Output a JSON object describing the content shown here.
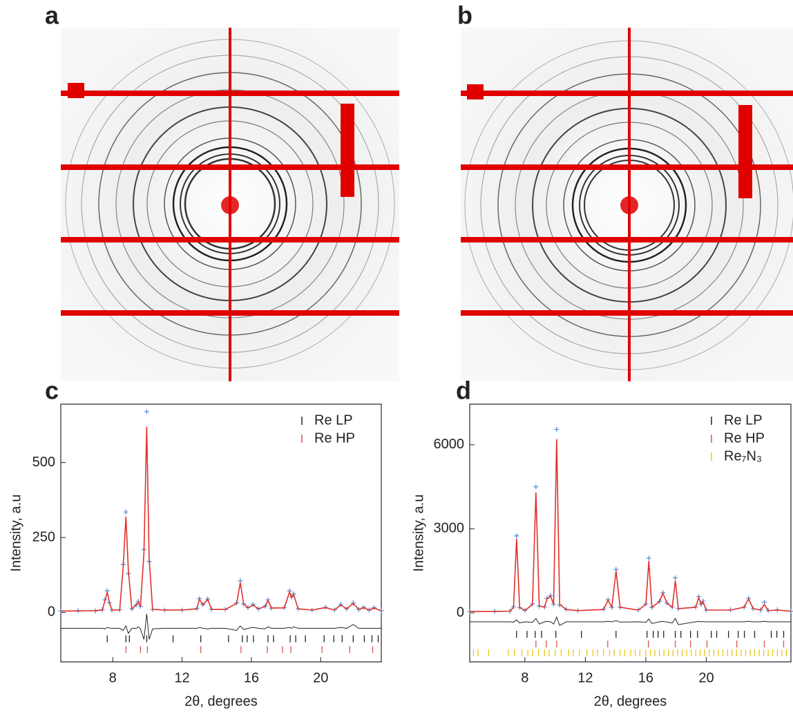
{
  "panel_labels": [
    "a",
    "b",
    "c",
    "d"
  ],
  "chart_data": [
    {
      "type": "line",
      "xlabel": "2θ, degrees",
      "ylabel": "Intensity, a.u",
      "xlim": [
        5,
        23.5
      ],
      "ylim": [
        -165,
        695
      ],
      "xticks": [
        8,
        12,
        16,
        20
      ],
      "yticks": [
        0,
        250,
        500
      ],
      "legend": "upper right",
      "x": [
        5.0,
        6.0,
        7.0,
        7.4,
        7.55,
        7.68,
        7.8,
        7.95,
        8.4,
        8.6,
        8.76,
        8.9,
        9.1,
        9.35,
        9.48,
        9.6,
        9.8,
        9.96,
        10.1,
        10.3,
        11.0,
        12.0,
        12.85,
        13.0,
        13.2,
        13.48,
        13.7,
        14.5,
        15.15,
        15.36,
        15.55,
        15.8,
        16.1,
        16.4,
        16.8,
        16.96,
        17.15,
        17.9,
        18.2,
        18.32,
        18.44,
        18.7,
        19.5,
        20.28,
        20.8,
        21.16,
        21.5,
        21.88,
        22.2,
        22.48,
        22.8,
        23.08,
        23.5
      ],
      "series": [
        {
          "color": "#5b8fd6",
          "marker": "+",
          "values": [
            5,
            6,
            5,
            9,
            42,
            72,
            33,
            8,
            9,
            160,
            335,
            130,
            12,
            25,
            37,
            20,
            210,
            670,
            170,
            10,
            8,
            8,
            13,
            46,
            26,
            45,
            11,
            10,
            32,
            105,
            28,
            16,
            27,
            12,
            21,
            42,
            14,
            16,
            72,
            52,
            62,
            12,
            8,
            17,
            9,
            27,
            12,
            32,
            10,
            17,
            8,
            16,
            6
          ]
        },
        {
          "color": "#e0302a",
          "values": [
            5,
            5,
            6,
            8,
            40,
            68,
            35,
            8,
            8,
            150,
            320,
            140,
            12,
            25,
            35,
            20,
            200,
            620,
            180,
            10,
            8,
            8,
            12,
            44,
            25,
            44,
            10,
            10,
            30,
            100,
            30,
            15,
            25,
            12,
            20,
            40,
            15,
            15,
            68,
            50,
            60,
            12,
            8,
            16,
            8,
            25,
            12,
            30,
            10,
            16,
            8,
            15,
            5
          ]
        },
        {
          "color": "#222222",
          "values": [
            -53,
            -53,
            -53,
            -53,
            -55,
            -50,
            -52,
            -53,
            -53,
            -60,
            -45,
            -70,
            -53,
            -53,
            -48,
            -55,
            -90,
            -5,
            -90,
            -55,
            -53,
            -53,
            -53,
            -50,
            -53,
            -55,
            -53,
            -53,
            -60,
            -45,
            -57,
            -53,
            -50,
            -53,
            -55,
            -48,
            -53,
            -53,
            -50,
            -53,
            -48,
            -53,
            -53,
            -53,
            -53,
            -50,
            -53,
            -40,
            -53,
            -53,
            -53,
            -53,
            -53
          ]
        }
      ],
      "reflections": [
        {
          "name": "Re LP",
          "color": "#222222",
          "x": [
            7.68,
            8.76,
            8.96,
            9.96,
            11.48,
            13.08,
            14.68,
            15.48,
            15.76,
            16.12,
            16.96,
            17.28,
            18.24,
            18.56,
            19.12,
            20.2,
            20.76,
            21.24,
            21.88,
            22.52,
            22.96,
            23.32
          ],
          "values": [
            -88,
            -88,
            -88,
            -88,
            -88,
            -88,
            -88,
            -88,
            -88,
            -88,
            -88,
            -88,
            -88,
            -88,
            -88,
            -88,
            -88,
            -88,
            -88,
            -88,
            -88,
            -88
          ]
        },
        {
          "name": "Re HP",
          "color": "#d9534f",
          "x": [
            8.76,
            9.6,
            10.0,
            13.08,
            15.4,
            16.92,
            17.8,
            18.28,
            20.08,
            21.68,
            23.0
          ],
          "values": [
            -124,
            -124,
            -124,
            -124,
            -124,
            -124,
            -124,
            -124,
            -124,
            -124,
            -124
          ]
        }
      ]
    },
    {
      "type": "line",
      "xlabel": "2θ, degrees",
      "ylabel": "Intensity, a.u",
      "xlim": [
        4.35,
        25.6
      ],
      "ylim": [
        -1750,
        7450
      ],
      "xticks": [
        8,
        12,
        16,
        20
      ],
      "yticks": [
        0,
        3000,
        6000
      ],
      "legend": "upper right",
      "x": [
        4.35,
        6.0,
        7.0,
        7.25,
        7.45,
        7.65,
        8.0,
        8.5,
        8.73,
        8.95,
        9.3,
        9.46,
        9.7,
        9.9,
        10.1,
        10.3,
        10.74,
        11.5,
        13.2,
        13.5,
        13.75,
        14.03,
        14.3,
        15.5,
        16.0,
        16.2,
        16.4,
        16.9,
        17.13,
        17.4,
        17.75,
        17.95,
        18.15,
        19.3,
        19.5,
        19.65,
        19.78,
        20.0,
        21.6,
        22.5,
        22.8,
        23.1,
        23.6,
        23.84,
        24.1,
        24.7,
        25.6
      ],
      "series": [
        {
          "color": "#5b8fd6",
          "marker": "+",
          "values": [
            50,
            60,
            60,
            220,
            2750,
            190,
            90,
            320,
            4500,
            240,
            210,
            520,
            620,
            310,
            6550,
            280,
            120,
            80,
            130,
            470,
            200,
            1550,
            200,
            110,
            320,
            1950,
            200,
            410,
            720,
            350,
            210,
            1250,
            150,
            210,
            580,
            310,
            420,
            100,
            110,
            200,
            520,
            150,
            100,
            380,
            80,
            110,
            60
          ]
        },
        {
          "color": "#e0302a",
          "values": [
            50,
            50,
            60,
            200,
            2650,
            200,
            80,
            300,
            4300,
            250,
            200,
            500,
            600,
            300,
            6200,
            300,
            120,
            80,
            120,
            450,
            200,
            1500,
            200,
            100,
            300,
            1850,
            200,
            400,
            700,
            350,
            200,
            1150,
            150,
            200,
            550,
            300,
            400,
            100,
            100,
            200,
            500,
            150,
            100,
            300,
            80,
            100,
            60
          ]
        },
        {
          "color": "#222222",
          "values": [
            -320,
            -320,
            -320,
            -330,
            -250,
            -360,
            -320,
            -340,
            -200,
            -400,
            -320,
            -300,
            -320,
            -400,
            -150,
            -450,
            -320,
            -320,
            -320,
            -300,
            -320,
            -280,
            -330,
            -320,
            -340,
            -220,
            -380,
            -320,
            -300,
            -330,
            -360,
            -200,
            -420,
            -320,
            -300,
            -320,
            -310,
            -320,
            -320,
            -320,
            -300,
            -320,
            -320,
            -300,
            -320,
            -320,
            -320
          ]
        }
      ],
      "reflections": [
        {
          "name": "Re LP",
          "color": "#222222",
          "x": [
            7.45,
            8.14,
            8.68,
            9.1,
            10.05,
            11.74,
            14.03,
            16.08,
            16.49,
            16.81,
            17.18,
            17.95,
            18.32,
            18.96,
            19.42,
            20.33,
            20.69,
            21.47,
            22.11,
            22.52,
            23.2,
            24.3,
            24.67,
            25.12
          ],
          "values": [
            -765,
            -765,
            -765,
            -765,
            -765,
            -765,
            -765,
            -765,
            -765,
            -765,
            -765,
            -765,
            -765,
            -765,
            -765,
            -765,
            -765,
            -765,
            -765,
            -765,
            -765,
            -765,
            -765,
            -765
          ]
        },
        {
          "name": "Re HP",
          "color": "#d9534f",
          "x": [
            8.73,
            9.42,
            10.1,
            13.48,
            16.17,
            17.95,
            18.96,
            20.05,
            22.02,
            23.84,
            25.12
          ],
          "values": [
            -1110,
            -1110,
            -1110,
            -1110,
            -1110,
            -1110,
            -1110,
            -1110,
            -1110,
            -1110,
            -1110
          ]
        },
        {
          "name": "Re₇N₃",
          "color": "#f0c419",
          "x": [
            4.6,
            4.9,
            5.6,
            6.9,
            7.3,
            7.8,
            8.2,
            8.5,
            8.9,
            9.3,
            9.6,
            10.0,
            10.4,
            10.9,
            11.2,
            11.6,
            12.1,
            12.5,
            12.8,
            13.2,
            13.6,
            13.9,
            14.3,
            14.6,
            15.0,
            15.3,
            15.6,
            16.0,
            16.3,
            16.6,
            16.9,
            17.2,
            17.5,
            17.8,
            18.1,
            18.4,
            18.7,
            19.0,
            19.3,
            19.6,
            19.9,
            20.2,
            20.5,
            20.8,
            21.1,
            21.4,
            21.7,
            22.0,
            22.3,
            22.6,
            22.9,
            23.2,
            23.5,
            23.8,
            24.1,
            24.4,
            24.7,
            25.0,
            25.3
          ],
          "values": [
            -1430,
            -1430,
            -1430,
            -1430,
            -1430,
            -1430,
            -1430,
            -1430,
            -1430,
            -1430,
            -1430,
            -1430,
            -1430,
            -1430,
            -1430,
            -1430,
            -1430,
            -1430,
            -1430,
            -1430,
            -1430,
            -1430,
            -1430,
            -1430,
            -1430,
            -1430,
            -1430,
            -1430,
            -1430,
            -1430,
            -1430,
            -1430,
            -1430,
            -1430,
            -1430,
            -1430,
            -1430,
            -1430,
            -1430,
            -1430,
            -1430,
            -1430,
            -1430,
            -1430,
            -1430,
            -1430,
            -1430,
            -1430,
            -1430,
            -1430,
            -1430,
            -1430,
            -1430,
            -1430,
            -1430,
            -1430,
            -1430,
            -1430,
            -1430
          ]
        }
      ]
    }
  ]
}
